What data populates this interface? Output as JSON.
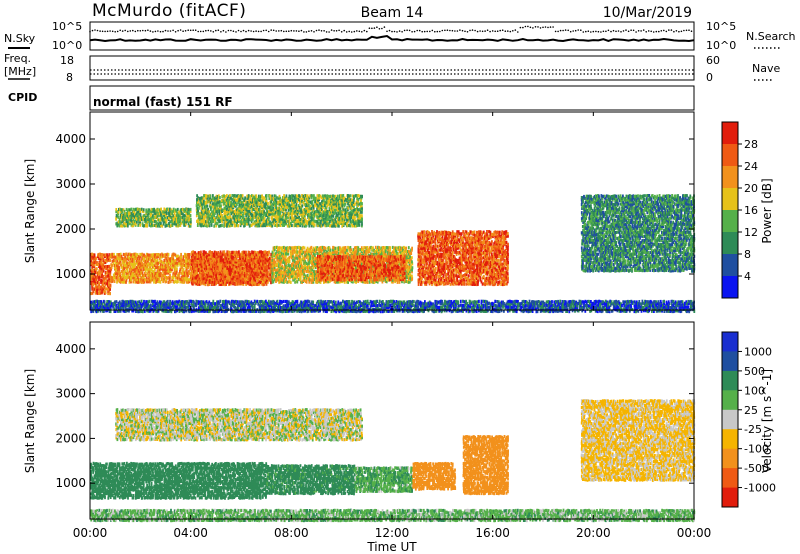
{
  "header": {
    "station": "McMurdo (fitACF)",
    "beam": "Beam 14",
    "date": "10/Mar/2019"
  },
  "noise_panel": {
    "left_label": "N.Sky",
    "right_label": "N.Search",
    "left_ticks": [
      "10^5",
      "10^0"
    ],
    "right_ticks": [
      "10^5",
      "10^0"
    ]
  },
  "freq_panel": {
    "left_label_line1": "Freq.",
    "left_label_line2": "[MHz]",
    "left_ticks": [
      "18",
      "8"
    ],
    "right_label": "Nave",
    "right_ticks": [
      "60",
      "0"
    ]
  },
  "cpid": {
    "label": "CPID",
    "text": "normal (fast) 151 RF"
  },
  "time_axis": {
    "title": "Time UT",
    "ticks": [
      "00:00",
      "04:00",
      "08:00",
      "12:00",
      "16:00",
      "20:00",
      "00:00"
    ]
  },
  "colors": {
    "power": [
      "#0a14f0",
      "#1f4fa0",
      "#2e8b57",
      "#55b04a",
      "#e6c21a",
      "#f2911c",
      "#ef5a14",
      "#e11d0c"
    ],
    "velocity": [
      "#e11d0c",
      "#ef5a14",
      "#f2911c",
      "#f5b400",
      "#c8c8c8",
      "#55b04a",
      "#2e8b57",
      "#1f4fa0",
      "#1a2fd0"
    ]
  },
  "chart_data": [
    {
      "type": "heatmap",
      "name": "power",
      "ylabel": "Slant Range [km]",
      "ylim": [
        200,
        4600
      ],
      "xlim_hours": [
        0,
        24
      ],
      "y_ticks": [
        "1000",
        "2000",
        "3000",
        "4000"
      ],
      "colorbar_label": "Power [dB]",
      "colorbar_ticks": [
        "4",
        "8",
        "12",
        "16",
        "20",
        "24",
        "28"
      ],
      "colorbar_range": [
        0,
        32
      ],
      "regions": [
        {
          "t0": 0.0,
          "t1": 0.8,
          "r0": 600,
          "r1": 1500,
          "level": 6
        },
        {
          "t0": 0.8,
          "t1": 7.0,
          "r0": 850,
          "r1": 1500,
          "level": 5
        },
        {
          "t0": 4.0,
          "t1": 7.2,
          "r0": 800,
          "r1": 1550,
          "level": 6
        },
        {
          "t0": 7.2,
          "t1": 12.8,
          "r0": 850,
          "r1": 1650,
          "level": 4
        },
        {
          "t0": 9.0,
          "t1": 12.5,
          "r0": 900,
          "r1": 1450,
          "level": 6
        },
        {
          "t0": 13.0,
          "t1": 16.6,
          "r0": 800,
          "r1": 2000,
          "level": 6
        },
        {
          "t0": 1.0,
          "t1": 4.0,
          "r0": 2100,
          "r1": 2500,
          "level": 3
        },
        {
          "t0": 4.2,
          "t1": 10.8,
          "r0": 2100,
          "r1": 2800,
          "level": 3
        },
        {
          "t0": 19.5,
          "t1": 24.0,
          "r0": 1100,
          "r1": 2800,
          "level": 2
        },
        {
          "t0": 0.0,
          "t1": 24.0,
          "r0": 200,
          "r1": 450,
          "level": 1
        }
      ]
    },
    {
      "type": "heatmap",
      "name": "velocity",
      "ylabel": "Slant Range [km]",
      "ylim": [
        200,
        4600
      ],
      "xlim_hours": [
        0,
        24
      ],
      "y_ticks": [
        "1000",
        "2000",
        "3000",
        "4000"
      ],
      "colorbar_label": "Velocity [m s^-1]",
      "colorbar_ticks": [
        "-1000",
        "-500",
        "-100",
        "-25",
        "25",
        "100",
        "500",
        "1000"
      ],
      "colorbar_range": [
        -1000,
        1000
      ],
      "regions": [
        {
          "t0": 0.0,
          "t1": 7.0,
          "r0": 700,
          "r1": 1500,
          "vel": 300
        },
        {
          "t0": 7.0,
          "t1": 10.5,
          "r0": 800,
          "r1": 1450,
          "vel": 150
        },
        {
          "t0": 10.5,
          "t1": 12.8,
          "r0": 850,
          "r1": 1400,
          "vel": 80
        },
        {
          "t0": 12.8,
          "t1": 14.5,
          "r0": 900,
          "r1": 1500,
          "vel": -250
        },
        {
          "t0": 14.8,
          "t1": 16.6,
          "r0": 800,
          "r1": 2100,
          "vel": -300
        },
        {
          "t0": 1.0,
          "t1": 10.8,
          "r0": 2000,
          "r1": 2700,
          "vel": 0
        },
        {
          "t0": 19.5,
          "t1": 24.0,
          "r0": 1100,
          "r1": 2900,
          "vel": -40
        },
        {
          "t0": 0.0,
          "t1": 24.0,
          "r0": 200,
          "r1": 450,
          "vel": 60
        }
      ]
    }
  ]
}
